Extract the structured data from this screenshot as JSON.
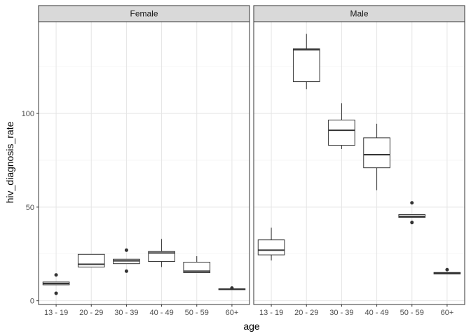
{
  "chart_data": {
    "type": "boxplot",
    "title": "",
    "xlabel": "age",
    "ylabel": "hiv_diagnosis_rate",
    "ylim": [
      -2,
      149
    ],
    "yticks": [
      0,
      50,
      100
    ],
    "categories": [
      "13 - 19",
      "20 - 29",
      "30 - 39",
      "40 - 49",
      "50 - 59",
      "60+"
    ],
    "grid": true,
    "panels": [
      {
        "name": "Female",
        "boxes": [
          {
            "category": "13 - 19",
            "q1": 8.5,
            "median": 9.2,
            "q3": 10.0,
            "whisker_low": 8.5,
            "whisker_high": 10.0,
            "outliers": [
              13.8,
              4.0
            ]
          },
          {
            "category": "20 - 29",
            "q1": 18.0,
            "median": 19.5,
            "q3": 24.8,
            "whisker_low": 18.0,
            "whisker_high": 24.8,
            "outliers": []
          },
          {
            "category": "30 - 39",
            "q1": 19.8,
            "median": 21.3,
            "q3": 22.2,
            "whisker_low": 19.8,
            "whisker_high": 22.2,
            "outliers": [
              27.0,
              15.8
            ]
          },
          {
            "category": "40 - 49",
            "q1": 21.0,
            "median": 25.5,
            "q3": 26.3,
            "whisker_low": 18.0,
            "whisker_high": 33.0,
            "outliers": []
          },
          {
            "category": "50 - 59",
            "q1": 15.0,
            "median": 15.8,
            "q3": 20.6,
            "whisker_low": 15.0,
            "whisker_high": 23.8,
            "outliers": []
          },
          {
            "category": "60+",
            "q1": 5.9,
            "median": 6.2,
            "q3": 6.4,
            "whisker_low": 5.9,
            "whisker_high": 6.4,
            "outliers": [
              6.8
            ]
          }
        ]
      },
      {
        "name": "Male",
        "boxes": [
          {
            "category": "13 - 19",
            "q1": 24.5,
            "median": 27.0,
            "q3": 32.5,
            "whisker_low": 21.5,
            "whisker_high": 39.0,
            "outliers": []
          },
          {
            "category": "20 - 29",
            "q1": 117.0,
            "median": 134.0,
            "q3": 134.5,
            "whisker_low": 113.0,
            "whisker_high": 142.5,
            "outliers": []
          },
          {
            "category": "30 - 39",
            "q1": 83.0,
            "median": 91.0,
            "q3": 96.5,
            "whisker_low": 81.0,
            "whisker_high": 105.5,
            "outliers": []
          },
          {
            "category": "40 - 49",
            "q1": 71.0,
            "median": 78.0,
            "q3": 87.0,
            "whisker_low": 59.0,
            "whisker_high": 94.5,
            "outliers": []
          },
          {
            "category": "50 - 59",
            "q1": 44.5,
            "median": 45.0,
            "q3": 46.0,
            "whisker_low": 44.5,
            "whisker_high": 46.0,
            "outliers": [
              52.3,
              41.8
            ]
          },
          {
            "category": "60+",
            "q1": 14.3,
            "median": 14.7,
            "q3": 15.1,
            "whisker_low": 14.3,
            "whisker_high": 15.1,
            "outliers": [
              16.6
            ]
          }
        ]
      }
    ]
  }
}
